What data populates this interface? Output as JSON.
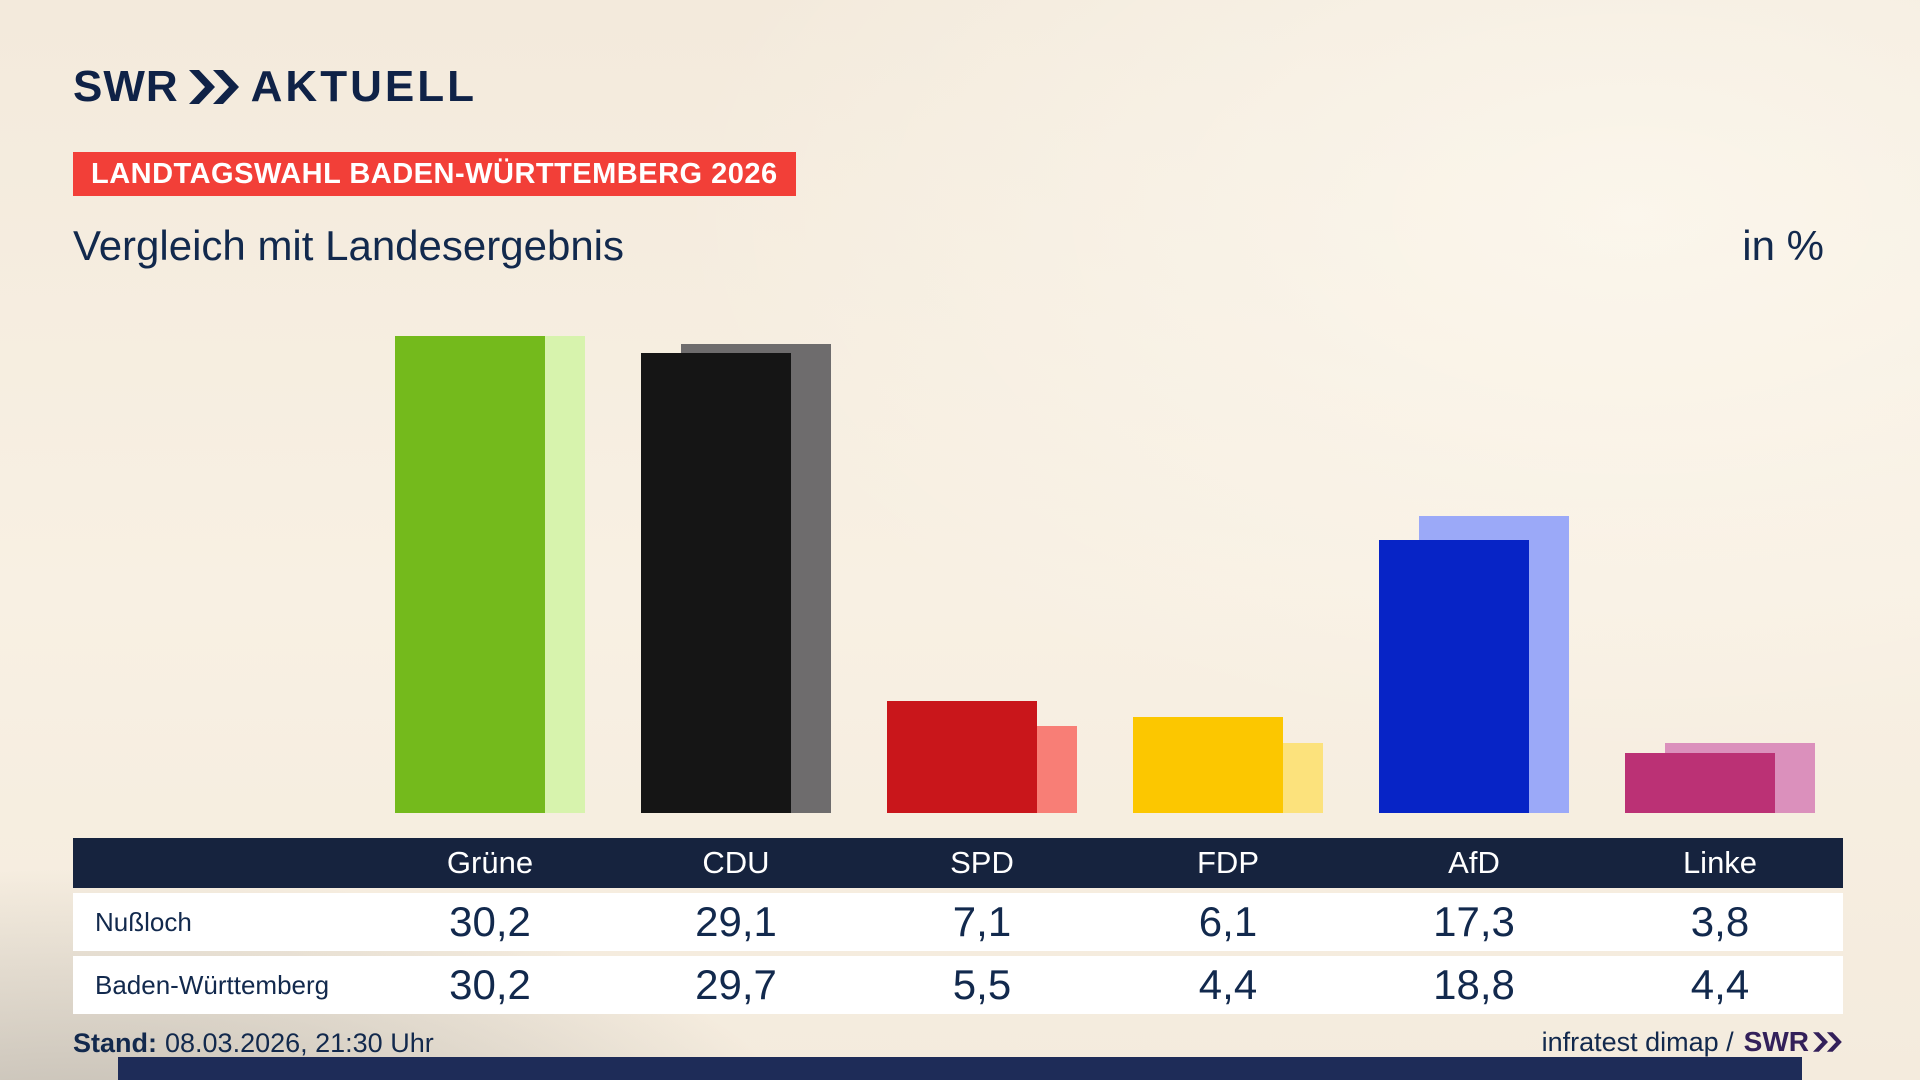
{
  "brand": {
    "logo_swr": "SWR",
    "logo_aktuell": "AKTUELL",
    "footer_swr": "SWR"
  },
  "header": {
    "badge": "LANDTAGSWAHL BADEN-WÜRTTEMBERG 2026",
    "title": "Vergleich mit Landesergebnis",
    "unit": "in %"
  },
  "chart_data": {
    "type": "bar",
    "title": "Vergleich mit Landesergebnis",
    "unit_label": "in %",
    "categories": [
      "Grüne",
      "CDU",
      "SPD",
      "FDP",
      "AfD",
      "Linke"
    ],
    "series": [
      {
        "name": "Nußloch",
        "values": [
          30.2,
          29.1,
          7.1,
          6.1,
          17.3,
          3.8
        ]
      },
      {
        "name": "Baden-Württemberg",
        "values": [
          30.2,
          29.7,
          5.5,
          4.4,
          18.8,
          4.4
        ]
      }
    ],
    "colors_main": [
      "#74ba1c",
      "#151515",
      "#c9161b",
      "#fcc700",
      "#0724c6",
      "#bb3175"
    ],
    "colors_state": [
      "#d7f3ad",
      "#6e6c6d",
      "#f87e76",
      "#fce27c",
      "#9ba9f8",
      "#db90bc"
    ],
    "ylim": [
      0,
      31
    ],
    "grid": false,
    "legend_position": "table-below"
  },
  "table": {
    "header": [
      "Grüne",
      "CDU",
      "SPD",
      "FDP",
      "AfD",
      "Linke"
    ],
    "rows": [
      {
        "label": "Nußloch",
        "values": [
          "30,2",
          "29,1",
          "7,1",
          "6,1",
          "17,3",
          "3,8"
        ]
      },
      {
        "label": "Baden-Württemberg",
        "values": [
          "30,2",
          "29,7",
          "5,5",
          "4,4",
          "18,8",
          "4,4"
        ]
      }
    ]
  },
  "footer": {
    "stand_label": "Stand:",
    "stand_value": "08.03.2026, 21:30 Uhr",
    "source_text": "infratest dimap /"
  },
  "colors": {
    "navy_text": "#12294d",
    "badge_red": "#f23f38",
    "table_header_bg": "#16233e",
    "logo_navy": "#0f2247",
    "footer_swr_purple": "#33205a",
    "bottom_strip": "#1e2c58",
    "row_bg": "#ffffff"
  }
}
